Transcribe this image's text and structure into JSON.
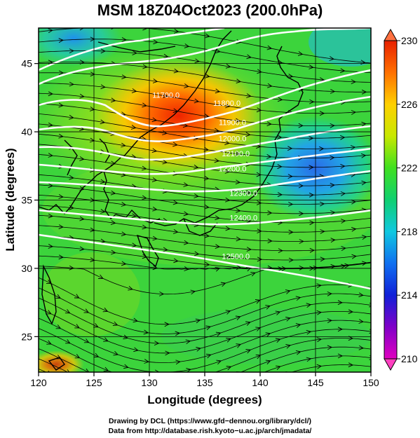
{
  "title": "MSM 18Z04Oct2023 (200.0hPa)",
  "colors": {
    "background": "#ffffff",
    "contour": "#ffffff",
    "streamline": "#000000",
    "coast": "#000000",
    "grid": "#000000"
  },
  "icons": {
    "colorbar_top": "triangle-up-icon",
    "colorbar_bottom": "triangle-down-icon"
  },
  "chart_data": {
    "type": "heatmap",
    "title": "MSM 18Z04Oct2023 (200.0hPa)",
    "xlabel": "Longitude (degrees)",
    "ylabel": "Latitude (degrees)",
    "xlim": [
      120,
      150
    ],
    "ylim": [
      22.4,
      47.6
    ],
    "xticks": [
      120,
      125,
      130,
      135,
      140,
      145,
      150
    ],
    "yticks": [
      25,
      30,
      35,
      40,
      45
    ],
    "grid": true,
    "colorbar": {
      "range": [
        210,
        230
      ],
      "ticks": [
        210,
        214,
        218,
        222,
        226,
        230
      ],
      "placement": "right"
    },
    "contours": [
      {
        "label": "11700.0",
        "lon": 131.5,
        "lat": 42.5
      },
      {
        "label": "11800.0",
        "lon": 137.0,
        "lat": 41.9
      },
      {
        "label": "11900.0",
        "lon": 137.5,
        "lat": 40.5
      },
      {
        "label": "12000.0",
        "lon": 137.5,
        "lat": 39.3
      },
      {
        "label": "12100.0",
        "lon": 137.8,
        "lat": 38.2
      },
      {
        "label": "12200.0",
        "lon": 137.5,
        "lat": 37.1
      },
      {
        "label": "12300.0",
        "lon": 138.5,
        "lat": 35.3
      },
      {
        "label": "12400.0",
        "lon": 138.5,
        "lat": 33.5
      },
      {
        "label": "12500.0",
        "lon": 137.8,
        "lat": 30.7
      }
    ]
  },
  "credits": {
    "line1": "Drawing by DCL (https://www.gfd−dennou.org/library/dcl/)",
    "line2": "Data from http://database.rish.kyoto−u.ac.jp/arch/jmadata/"
  }
}
